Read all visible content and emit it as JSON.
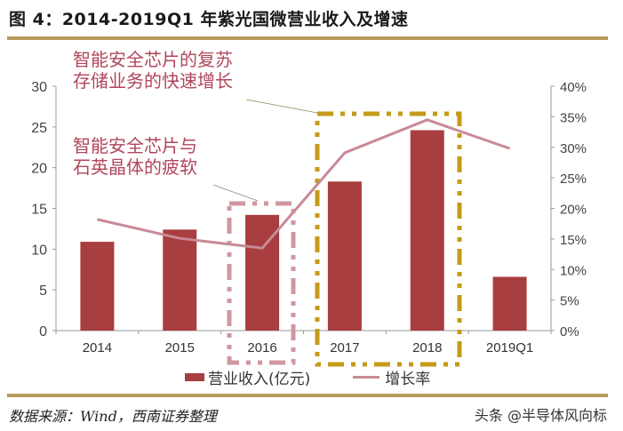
{
  "header": {
    "title": "图 4：2014-2019Q1 年紫光国微营业收入及增速"
  },
  "footer": {
    "source": "数据来源：Wind，西南证券整理",
    "watermark": "头条 @半导体风向标"
  },
  "legend": {
    "bar_label": "营业收入(亿元)",
    "line_label": "增长率"
  },
  "annotations": {
    "upper": [
      "智能安全芯片的复苏",
      "存储业务的快速增长"
    ],
    "lower": [
      "智能安全芯片与",
      "石英晶体的疲软"
    ]
  },
  "colors": {
    "bar": "#a83e3f",
    "line": "#c88a96",
    "highlight_gold": "#c49a18",
    "highlight_pink": "#cf98a0",
    "annotation_text": "#b0465a",
    "rule": "#b79a5c"
  },
  "chart_data": {
    "type": "bar",
    "title": "2014-2019Q1 年紫光国微营业收入及增速",
    "categories": [
      "2014",
      "2015",
      "2016",
      "2017",
      "2018",
      "2019Q1"
    ],
    "series": [
      {
        "name": "营业收入(亿元)",
        "type": "bar",
        "axis": "left",
        "values": [
          10.9,
          12.4,
          14.2,
          18.3,
          24.6,
          6.6
        ]
      },
      {
        "name": "增长率",
        "type": "line",
        "axis": "right",
        "unit": "%",
        "values": [
          18.2,
          15.1,
          13.5,
          29.1,
          34.5,
          29.8
        ]
      }
    ],
    "left_axis": {
      "ylim": [
        0,
        30
      ],
      "ticks": [
        "0",
        "5",
        "10",
        "15",
        "20",
        "25",
        "30"
      ]
    },
    "right_axis": {
      "ylim": [
        0,
        40
      ],
      "ticks": [
        "0%",
        "5%",
        "10%",
        "15%",
        "20%",
        "25%",
        "30%",
        "35%",
        "40%"
      ]
    },
    "xlabel": "",
    "ylabel": "",
    "grid": false,
    "legend_position": "bottom",
    "highlights": [
      {
        "category": "2016",
        "style": "dash-dot",
        "color": "#cf98a0",
        "note": "智能安全芯片与石英晶体的疲软"
      },
      {
        "category": "2017-2018",
        "style": "dash-dot",
        "color": "#c49a18",
        "note": "智能安全芯片的复苏 存储业务的快速增长"
      }
    ]
  }
}
